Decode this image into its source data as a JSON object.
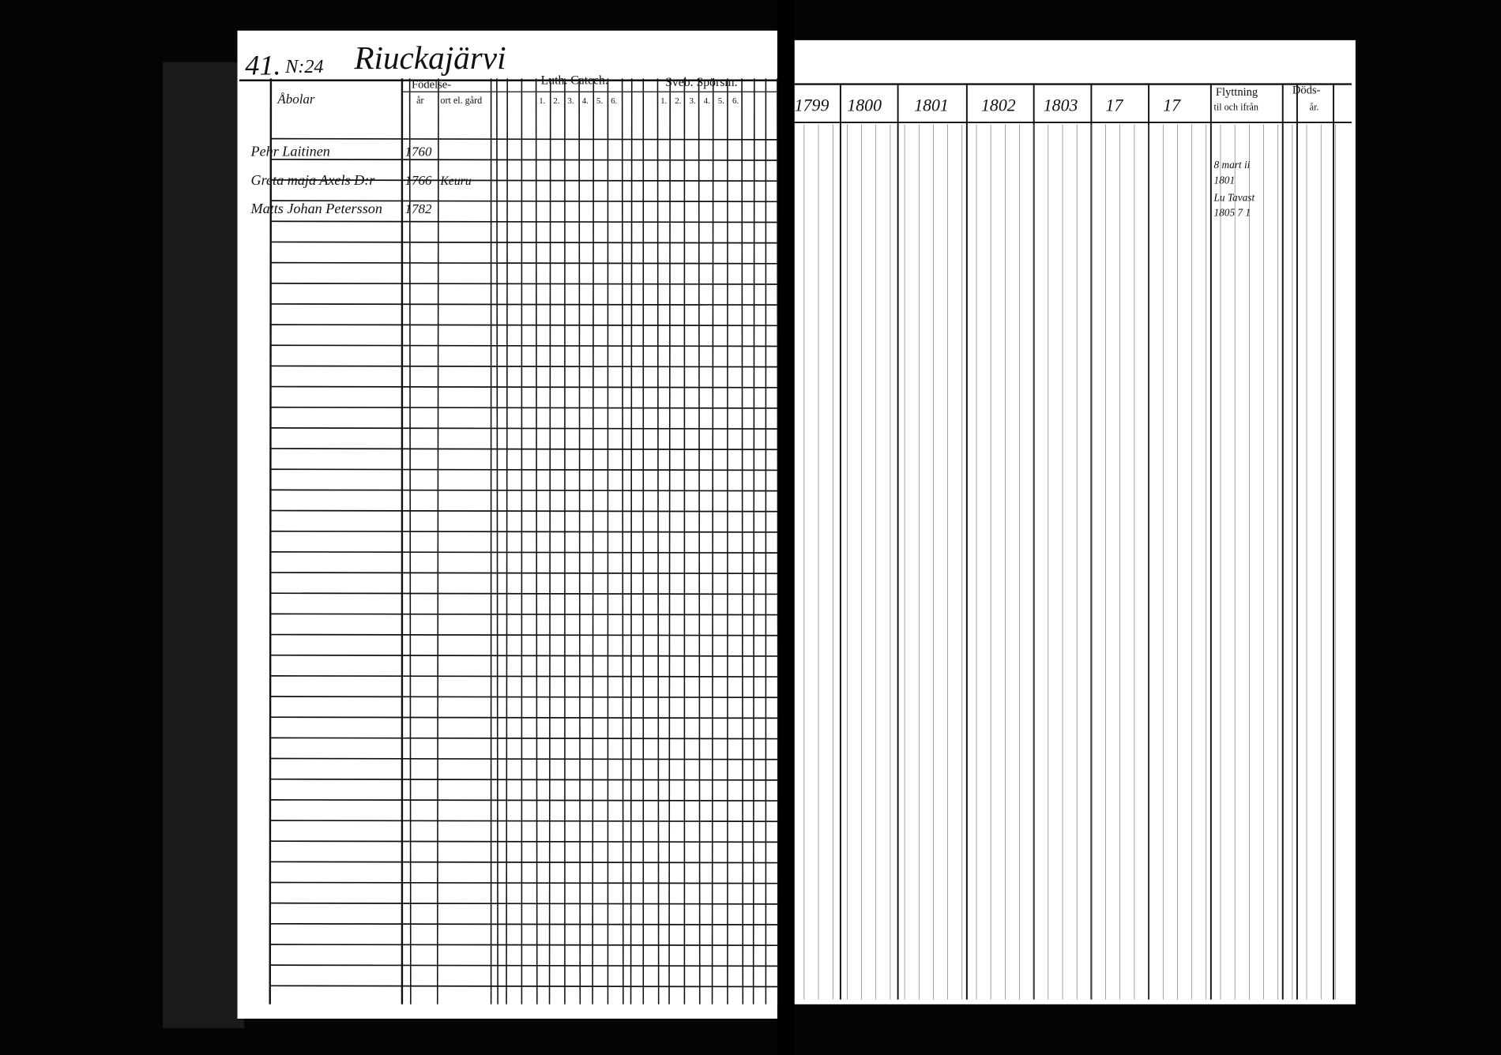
{
  "header": {
    "page_number": "41.",
    "farm_number": "N:24",
    "village": "Riuckajärvi"
  },
  "left_columns": {
    "name": "Åbolar",
    "birth": "Födelse-",
    "birth_year": "år",
    "birth_place": "ort el. gård",
    "luth": "Luth. Catech.",
    "luth_numbers": [
      "1.",
      "2.",
      "3.",
      "4.",
      "5.",
      "6."
    ],
    "sveb": "Sveb. Spörsm.",
    "sveb_numbers": [
      "1.",
      "2.",
      "3.",
      "4.",
      "5.",
      "6."
    ]
  },
  "right_columns": {
    "years": [
      "1799",
      "1800",
      "1801",
      "1802",
      "1803",
      "17",
      "17"
    ],
    "moving": "Flyttning",
    "moving_sub": "til och ifrån",
    "death": "Döds-",
    "death_year": "år."
  },
  "rows": [
    {
      "name": "Pehr Laitinen",
      "born": "1760"
    },
    {
      "name": "Greta maja Axels D:r",
      "born": "1766",
      "place": "Keuru"
    },
    {
      "name": "Matts Johan Petersson",
      "born": "1782"
    }
  ],
  "notes": [
    {
      "text": "8 mart ii"
    },
    {
      "text": "1801"
    },
    {
      "text": "Lu Tavast"
    },
    {
      "text": "1805 7 1"
    }
  ]
}
